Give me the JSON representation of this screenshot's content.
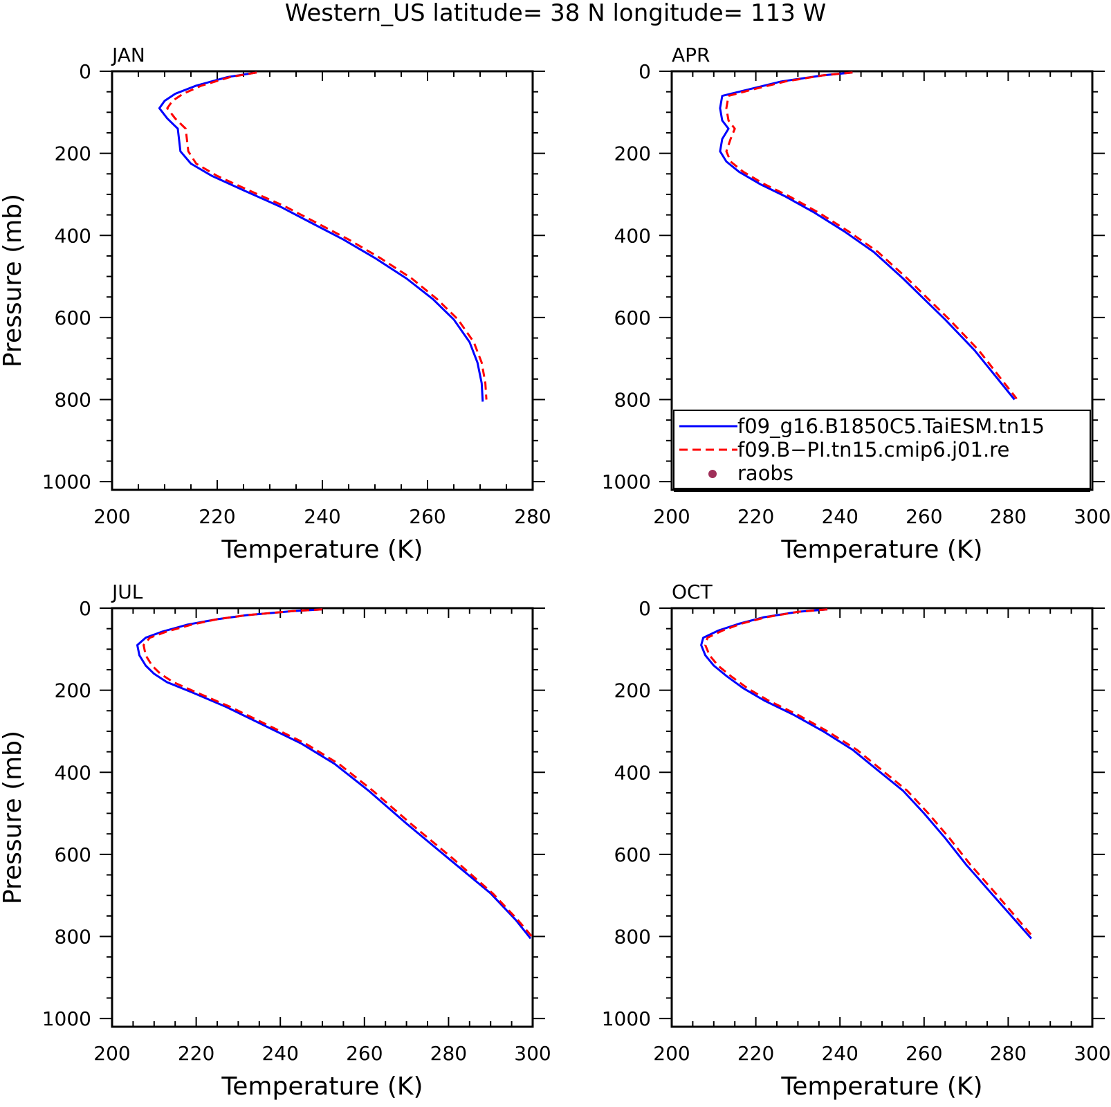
{
  "title": "Western_US  latitude= 38 N longitude= 113 W",
  "legend": {
    "entries": [
      {
        "name": "f09_g16.B1850C5.TaiESM.tn15",
        "color": "#0000ff",
        "style": "solid"
      },
      {
        "name": "f09.B−PI.tn15.cmip6.j01.re",
        "color": "#ff0000",
        "style": "dashed"
      },
      {
        "name": "raobs",
        "color": "#a0305a",
        "style": "marker"
      }
    ]
  },
  "chart_data": [
    {
      "type": "line",
      "label": "JAN",
      "xlabel": "Temperature (K)",
      "ylabel": "Pressure (mb)",
      "xlim": [
        200,
        280
      ],
      "ylim": [
        0,
        1020
      ],
      "y_inverted": true,
      "xticks": [
        200,
        220,
        240,
        260,
        280
      ],
      "yticks": [
        0,
        200,
        400,
        600,
        800,
        1000
      ],
      "series": [
        {
          "name": "f09_g16.B1850C5.TaiESM.tn15",
          "color": "#0000ff",
          "points": [
            [
              227.5,
              3
            ],
            [
              222,
              14
            ],
            [
              216,
              35
            ],
            [
              212,
              55
            ],
            [
              210,
              72
            ],
            [
              209,
              90
            ],
            [
              210.5,
              115
            ],
            [
              212.5,
              140
            ],
            [
              213,
              195
            ],
            [
              215,
              225
            ],
            [
              219,
              255
            ],
            [
              225,
              290
            ],
            [
              232,
              330
            ],
            [
              238,
              370
            ],
            [
              244,
              410
            ],
            [
              250,
              455
            ],
            [
              256,
              505
            ],
            [
              261,
              555
            ],
            [
              265,
              605
            ],
            [
              268,
              660
            ],
            [
              269.5,
              710
            ],
            [
              270.3,
              760
            ],
            [
              270.5,
              805
            ]
          ]
        },
        {
          "name": "f09.B−PI.tn15.cmip6.j01.re",
          "color": "#ff0000",
          "points": [
            [
              227.5,
              3
            ],
            [
              222.5,
              14
            ],
            [
              217,
              35
            ],
            [
              213.5,
              55
            ],
            [
              211.5,
              72
            ],
            [
              210.5,
              90
            ],
            [
              212,
              115
            ],
            [
              214,
              140
            ],
            [
              214.5,
              195
            ],
            [
              216,
              225
            ],
            [
              220,
              255
            ],
            [
              226,
              290
            ],
            [
              233,
              330
            ],
            [
              239,
              370
            ],
            [
              245,
              410
            ],
            [
              251,
              455
            ],
            [
              257,
              505
            ],
            [
              261.8,
              555
            ],
            [
              265.8,
              605
            ],
            [
              268.8,
              660
            ],
            [
              270.3,
              710
            ],
            [
              271,
              760
            ],
            [
              271.2,
              800
            ]
          ]
        }
      ]
    },
    {
      "type": "line",
      "label": "APR",
      "xlabel": "Temperature (K)",
      "ylabel": "",
      "xlim": [
        200,
        300
      ],
      "ylim": [
        0,
        1020
      ],
      "y_inverted": true,
      "xticks": [
        200,
        220,
        240,
        260,
        280,
        300
      ],
      "yticks": [
        0,
        200,
        400,
        600,
        800,
        1000
      ],
      "series": [
        {
          "name": "f09_g16.B1850C5.TaiESM.tn15",
          "color": "#0000ff",
          "points": [
            [
              243,
              3
            ],
            [
              236,
              10
            ],
            [
              226,
              25
            ],
            [
              218,
              45
            ],
            [
              212,
              60
            ],
            [
              211.5,
              90
            ],
            [
              212,
              120
            ],
            [
              213.5,
              140
            ],
            [
              212,
              165
            ],
            [
              211.5,
              195
            ],
            [
              213,
              220
            ],
            [
              216,
              245
            ],
            [
              221,
              275
            ],
            [
              227,
              305
            ],
            [
              234,
              345
            ],
            [
              241,
              390
            ],
            [
              248,
              440
            ],
            [
              255,
              505
            ],
            [
              260,
              555
            ],
            [
              265,
              605
            ],
            [
              272,
              680
            ],
            [
              281.5,
              800
            ]
          ]
        },
        {
          "name": "f09.B−PI.tn15.cmip6.j01.re",
          "color": "#ff0000",
          "points": [
            [
              243,
              3
            ],
            [
              236,
              10
            ],
            [
              227,
              25
            ],
            [
              219,
              45
            ],
            [
              213.5,
              60
            ],
            [
              213,
              90
            ],
            [
              213.5,
              120
            ],
            [
              215,
              140
            ],
            [
              214,
              165
            ],
            [
              213,
              195
            ],
            [
              214,
              220
            ],
            [
              217,
              245
            ],
            [
              222,
              275
            ],
            [
              228,
              305
            ],
            [
              235,
              345
            ],
            [
              242,
              390
            ],
            [
              249,
              440
            ],
            [
              256,
              505
            ],
            [
              261,
              555
            ],
            [
              266,
              605
            ],
            [
              273,
              680
            ],
            [
              282,
              798
            ]
          ]
        }
      ]
    },
    {
      "type": "line",
      "label": "JUL",
      "xlabel": "Temperature (K)",
      "ylabel": "Pressure (mb)",
      "xlim": [
        200,
        300
      ],
      "ylim": [
        0,
        1020
      ],
      "y_inverted": true,
      "xticks": [
        200,
        220,
        240,
        260,
        280,
        300
      ],
      "yticks": [
        0,
        200,
        400,
        600,
        800,
        1000
      ],
      "series": [
        {
          "name": "f09_g16.B1850C5.TaiESM.tn15",
          "color": "#0000ff",
          "points": [
            [
              250,
              3
            ],
            [
              243,
              7
            ],
            [
              232,
              17
            ],
            [
              225,
              27
            ],
            [
              218,
              40
            ],
            [
              212,
              57
            ],
            [
              208,
              72
            ],
            [
              206,
              90
            ],
            [
              206.5,
              115
            ],
            [
              208,
              140
            ],
            [
              210,
              160
            ],
            [
              213,
              180
            ],
            [
              219,
              205
            ],
            [
              227,
              240
            ],
            [
              236,
              285
            ],
            [
              245,
              330
            ],
            [
              253,
              380
            ],
            [
              261,
              445
            ],
            [
              270,
              525
            ],
            [
              280,
              610
            ],
            [
              290,
              695
            ],
            [
              296,
              760
            ],
            [
              299.5,
              805
            ]
          ]
        },
        {
          "name": "f09.B−PI.tn15.cmip6.j01.re",
          "color": "#ff0000",
          "points": [
            [
              250,
              3
            ],
            [
              243,
              7
            ],
            [
              232,
              17
            ],
            [
              225,
              27
            ],
            [
              219,
              40
            ],
            [
              213,
              57
            ],
            [
              209,
              72
            ],
            [
              207.5,
              90
            ],
            [
              208,
              115
            ],
            [
              209.5,
              140
            ],
            [
              211.5,
              160
            ],
            [
              214.5,
              180
            ],
            [
              220,
              205
            ],
            [
              228,
              240
            ],
            [
              237,
              285
            ],
            [
              246,
              330
            ],
            [
              254,
              380
            ],
            [
              262,
              445
            ],
            [
              271,
              525
            ],
            [
              281,
              610
            ],
            [
              290.5,
              695
            ],
            [
              296.5,
              760
            ],
            [
              299.8,
              800
            ]
          ]
        }
      ]
    },
    {
      "type": "line",
      "label": "OCT",
      "xlabel": "Temperature (K)",
      "ylabel": "",
      "xlim": [
        200,
        300
      ],
      "ylim": [
        0,
        1020
      ],
      "y_inverted": true,
      "xticks": [
        200,
        220,
        240,
        260,
        280,
        300
      ],
      "yticks": [
        0,
        200,
        400,
        600,
        800,
        1000
      ],
      "series": [
        {
          "name": "f09_g16.B1850C5.TaiESM.tn15",
          "color": "#0000ff",
          "points": [
            [
              237,
              3
            ],
            [
              230,
              9
            ],
            [
              222,
              22
            ],
            [
              216,
              38
            ],
            [
              211,
              55
            ],
            [
              207.5,
              72
            ],
            [
              207,
              90
            ],
            [
              208,
              115
            ],
            [
              210,
              140
            ],
            [
              213,
              165
            ],
            [
              217,
              195
            ],
            [
              222,
              225
            ],
            [
              229,
              260
            ],
            [
              236,
              300
            ],
            [
              243,
              345
            ],
            [
              249,
              395
            ],
            [
              255,
              445
            ],
            [
              260,
              500
            ],
            [
              265,
              560
            ],
            [
              270,
              625
            ],
            [
              276,
              695
            ],
            [
              285.5,
              805
            ]
          ]
        },
        {
          "name": "f09.B−PI.tn15.cmip6.j01.re",
          "color": "#ff0000",
          "points": [
            [
              237,
              3
            ],
            [
              230,
              9
            ],
            [
              222.5,
              22
            ],
            [
              216.5,
              38
            ],
            [
              212,
              55
            ],
            [
              208.5,
              72
            ],
            [
              208,
              90
            ],
            [
              209,
              115
            ],
            [
              211,
              140
            ],
            [
              214,
              165
            ],
            [
              218,
              195
            ],
            [
              223,
              225
            ],
            [
              230,
              260
            ],
            [
              237,
              300
            ],
            [
              244,
              345
            ],
            [
              250,
              395
            ],
            [
              256,
              445
            ],
            [
              261,
              500
            ],
            [
              266,
              560
            ],
            [
              271,
              625
            ],
            [
              277,
              695
            ],
            [
              285.8,
              800
            ]
          ]
        }
      ]
    }
  ]
}
